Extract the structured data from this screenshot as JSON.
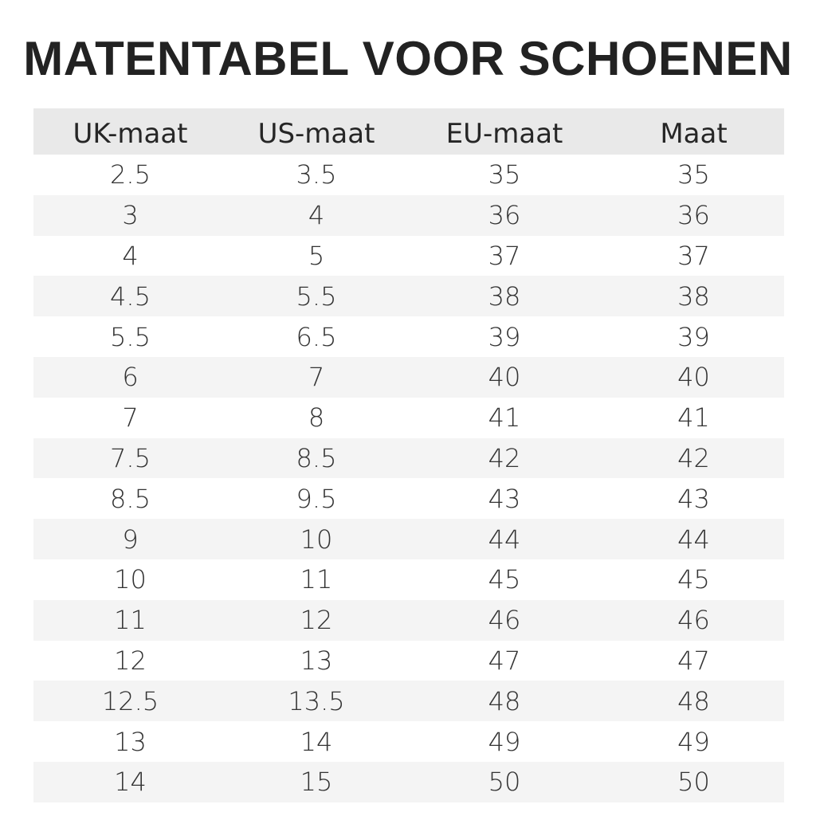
{
  "title": "MATENTABEL VOOR SCHOENEN",
  "table": {
    "headers": [
      "UK-maat",
      "US-maat",
      "EU-maat",
      "Maat"
    ],
    "rows": [
      [
        "2.5",
        "3.5",
        "35",
        "35"
      ],
      [
        "3",
        "4",
        "36",
        "36"
      ],
      [
        "4",
        "5",
        "37",
        "37"
      ],
      [
        "4.5",
        "5.5",
        "38",
        "38"
      ],
      [
        "5.5",
        "6.5",
        "39",
        "39"
      ],
      [
        "6",
        "7",
        "40",
        "40"
      ],
      [
        "7",
        "8",
        "41",
        "41"
      ],
      [
        "7.5",
        "8.5",
        "42",
        "42"
      ],
      [
        "8.5",
        "9.5",
        "43",
        "43"
      ],
      [
        "9",
        "10",
        "44",
        "44"
      ],
      [
        "10",
        "11",
        "45",
        "45"
      ],
      [
        "11",
        "12",
        "46",
        "46"
      ],
      [
        "12",
        "13",
        "47",
        "47"
      ],
      [
        "12.5",
        "13.5",
        "48",
        "48"
      ],
      [
        "13",
        "14",
        "49",
        "49"
      ],
      [
        "14",
        "15",
        "50",
        "50"
      ]
    ]
  },
  "colors": {
    "title_text": "#222222",
    "header_bg": "#e9e9e9",
    "alt_row_bg": "#f4f4f4"
  }
}
